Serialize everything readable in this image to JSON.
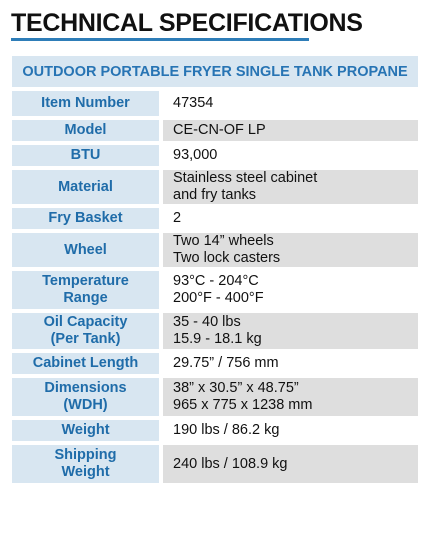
{
  "heading": "TECHNICAL SPECIFICATIONS",
  "product_title": "OUTDOOR PORTABLE FRYER SINGLE TANK PROPANE",
  "rows": [
    {
      "label": [
        "Item Number"
      ],
      "value": [
        "47354"
      ]
    },
    {
      "label": [
        "Model"
      ],
      "value": [
        "CE-CN-OF LP"
      ]
    },
    {
      "label": [
        "BTU"
      ],
      "value": [
        "93,000"
      ]
    },
    {
      "label": [
        "Material"
      ],
      "value": [
        "Stainless steel cabinet",
        "and fry tanks"
      ]
    },
    {
      "label": [
        "Fry Basket"
      ],
      "value": [
        "2"
      ]
    },
    {
      "label": [
        "Wheel"
      ],
      "value": [
        "Two 14” wheels",
        "Two lock casters"
      ]
    },
    {
      "label": [
        "Temperature",
        "Range"
      ],
      "value": [
        "93°C - 204°C",
        "200°F - 400°F"
      ]
    },
    {
      "label": [
        "Oil Capacity",
        "(Per Tank)"
      ],
      "value": [
        "35 - 40 lbs",
        "15.9 - 18.1 kg"
      ]
    },
    {
      "label": [
        "Cabinet Length"
      ],
      "value": [
        "29.75” / 756 mm"
      ]
    },
    {
      "label": [
        "Dimensions",
        "(WDH)"
      ],
      "value": [
        "38” x 30.5” x 48.75”",
        "965 x 775 x 1238 mm"
      ]
    },
    {
      "label": [
        "Weight"
      ],
      "value": [
        "190 lbs / 86.2 kg"
      ]
    },
    {
      "label": [
        "Shipping",
        "Weight"
      ],
      "value": [
        "240 lbs / 108.9 kg"
      ]
    }
  ],
  "colors": {
    "label_text": "#1f6ca9",
    "label_bg": "#d8e6f1",
    "heading_rule": "#2e7db8",
    "alt_value_bg": "#dedede"
  }
}
